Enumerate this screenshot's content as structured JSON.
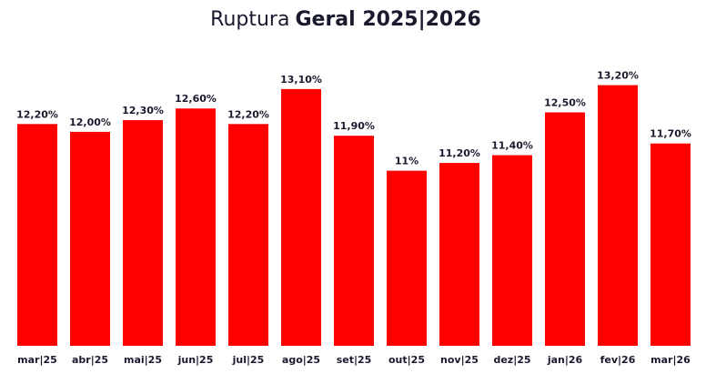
{
  "chart_data": {
    "type": "bar",
    "title": "Ruptura",
    "title_bold": "Geral 2025|2026",
    "categories": [
      "mar|25",
      "abr|25",
      "mai|25",
      "jun|25",
      "jul|25",
      "ago|25",
      "set|25",
      "out|25",
      "nov|25",
      "dez|25",
      "jan|26",
      "fev|26",
      "mar|26"
    ],
    "values": [
      12.2,
      12.0,
      12.3,
      12.6,
      12.2,
      13.1,
      11.9,
      11,
      11.2,
      11.4,
      12.5,
      13.2,
      11.7
    ],
    "value_labels": [
      "12,20%",
      "12,00%",
      "12,30%",
      "12,60%",
      "12,20%",
      "13,10%",
      "11,90%",
      "11%",
      "11,20%",
      "11,40%",
      "12,50%",
      "13,20%",
      "11,70%"
    ],
    "color": "#ff0000",
    "ylim": [
      6.5,
      14.5
    ]
  }
}
